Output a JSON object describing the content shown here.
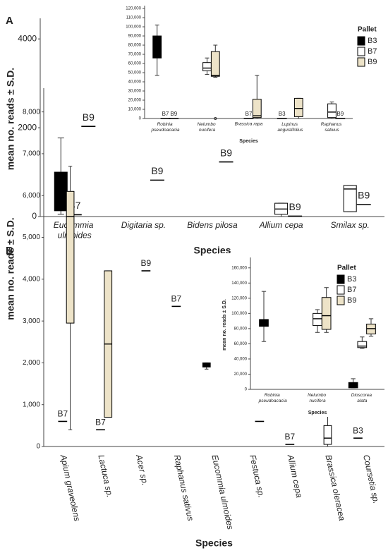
{
  "chart_data": [
    {
      "type": "box",
      "panel_label": "A",
      "xlabel": "Species",
      "ylabel": "mean no. reads ± S.D.",
      "categories": [
        "Eucommia ulmoides",
        "Digitaria sp.",
        "Bidens pilosa",
        "Allium cepa",
        "Smilax sp."
      ],
      "ylim": [
        0,
        4400
      ],
      "yticks": [
        0,
        2000,
        4000
      ],
      "series": [
        {
          "name": "B3",
          "color": "#000000",
          "values": [
            {
              "min": 50,
              "q1": 130,
              "median": 600,
              "q3": 1000,
              "max": 1770
            },
            null,
            null,
            null,
            null
          ]
        },
        {
          "name": "B7",
          "color": "#ffffff",
          "values": [
            40,
            null,
            null,
            {
              "min": 0,
              "q1": 50,
              "median": 170,
              "q3": 300,
              "max": 300
            },
            {
              "min": 110,
              "q1": 110,
              "median": 620,
              "q3": 700,
              "max": 700
            }
          ]
        },
        {
          "name": "B9",
          "color": "#ede3c8",
          "values": [
            2030,
            820,
            1230,
            10,
            270
          ]
        }
      ]
    },
    {
      "type": "box",
      "xlabel": "Species",
      "legend_title": "Pallet",
      "categories": [
        "Robinia pseudoacacia",
        "Nelumbo nucifera",
        "Brassica rapa",
        "Lupinus angustifolius",
        "Raphanus sativus"
      ],
      "ylim": [
        0,
        120000
      ],
      "yticks": [
        0,
        {
          "value": 10000,
          "label": "10,000"
        },
        {
          "value": 20000,
          "label": "20,000"
        },
        {
          "value": 30000,
          "label": "30,000"
        },
        {
          "value": 40000,
          "label": "40,000"
        },
        {
          "value": 50000,
          "label": "50,000"
        },
        {
          "value": 60000,
          "label": "60,000"
        },
        {
          "value": 70000,
          "label": "70,000"
        },
        {
          "value": 80000,
          "label": "80,000"
        },
        {
          "value": 90000,
          "label": "90,000"
        },
        {
          "value": 100000,
          "label": "100,000"
        },
        {
          "value": 110000,
          "label": "110,000"
        },
        {
          "value": 120000,
          "label": "120,000"
        }
      ],
      "series": [
        {
          "name": "B3",
          "color": "#000000",
          "values": [
            {
              "min": 47000,
              "q1": 66000,
              "median": 77000,
              "q3": 90000,
              "max": 102000
            },
            null,
            null,
            0,
            null
          ]
        },
        {
          "name": "B7",
          "color": "#ffffff",
          "values": [
            0,
            {
              "min": 48000,
              "q1": 52000,
              "median": 55000,
              "q3": 61000,
              "max": 66000
            },
            0,
            null,
            {
              "min": 0,
              "q1": 1000,
              "median": 7000,
              "q3": 16000,
              "max": 18000
            }
          ]
        },
        {
          "name": "B9",
          "color": "#ede3c8",
          "values": [
            0,
            {
              "min": 45000,
              "q1": 46000,
              "median": 47000,
              "q3": 73000,
              "max": 80000,
              "outliers": [
                0
              ]
            },
            {
              "min": 0,
              "q1": 1000,
              "median": 3000,
              "q3": 21000,
              "max": 47000
            },
            {
              "min": 0,
              "q1": 2000,
              "median": 11000,
              "q3": 22000,
              "max": 22000
            },
            0
          ]
        }
      ]
    },
    {
      "type": "box",
      "panel_label": "B",
      "xlabel": "Species",
      "ylabel": "mean no. reads ± S.D.",
      "categories": [
        "Apium graveolens",
        "Lactuca sp.",
        "Acer sp.",
        "Raphanus sativus",
        "Eucommia ulmoides",
        "Festuca sp.",
        "Allium cepa",
        "Brassica oleracea",
        "Coursetia sp."
      ],
      "ylim": [
        0,
        8500
      ],
      "yticks": [
        0,
        {
          "value": 1000,
          "label": "1,000"
        },
        {
          "value": 2000,
          "label": "2,000"
        },
        {
          "value": 3000,
          "label": "3,000"
        },
        {
          "value": 4000,
          "label": "4,000"
        },
        {
          "value": 5000,
          "label": "5,000"
        },
        {
          "value": 6000,
          "label": "6,000"
        },
        {
          "value": 7000,
          "label": "7,000"
        },
        {
          "value": 8000,
          "label": "8,000"
        }
      ],
      "series": [
        {
          "name": "B3",
          "color": "#000000",
          "values": [
            null,
            null,
            null,
            null,
            {
              "min": 1850,
              "q1": 1900,
              "median": 1950,
              "q3": 2000,
              "max": 2000
            },
            null,
            null,
            null,
            200
          ]
        },
        {
          "name": "B7",
          "color": "#ffffff",
          "values": [
            600,
            400,
            null,
            3350,
            null,
            null,
            50,
            {
              "min": 0,
              "q1": 50,
              "median": 200,
              "q3": 500,
              "max": 1050
            },
            null
          ]
        },
        {
          "name": "B9",
          "color": "#ede3c8",
          "values": [
            {
              "min": 400,
              "q1": 2950,
              "median": 5500,
              "q3": 6100,
              "max": 6700
            },
            {
              "min": 700,
              "q1": 700,
              "median": 2450,
              "q3": 4200,
              "max": 4200
            },
            4200,
            null,
            null,
            600,
            null,
            null,
            null
          ]
        }
      ]
    },
    {
      "type": "box",
      "xlabel": "Species",
      "ylabel": "mean no. reads ± S.D.",
      "legend_title": "Pallet",
      "categories": [
        "Robinia pseudoacacia",
        "Nelumbo nucifera",
        "Dioscorea alata"
      ],
      "ylim": [
        0,
        170000
      ],
      "yticks": [
        0,
        {
          "value": 20000,
          "label": "20,000"
        },
        {
          "value": 40000,
          "label": "40,000"
        },
        {
          "value": 60000,
          "label": "60,000"
        },
        {
          "value": 80000,
          "label": "80,000"
        },
        {
          "value": 100000,
          "label": "100,000"
        },
        {
          "value": 120000,
          "label": "120,000"
        },
        {
          "value": 140000,
          "label": "140,000"
        },
        {
          "value": 160000,
          "label": "160,000"
        }
      ],
      "series": [
        {
          "name": "B3",
          "color": "#000000",
          "values": [
            {
              "min": 63000,
              "q1": 83000,
              "median": 88000,
              "q3": 92000,
              "max": 129000
            },
            null,
            {
              "min": 2000,
              "q1": 2000,
              "median": 5000,
              "q3": 9000,
              "max": 14000
            }
          ]
        },
        {
          "name": "B7",
          "color": "#ffffff",
          "values": [
            null,
            {
              "min": 75000,
              "q1": 84000,
              "median": 93000,
              "q3": 100000,
              "max": 105000
            },
            {
              "min": 54000,
              "q1": 55000,
              "median": 57000,
              "q3": 63000,
              "max": 69000
            }
          ]
        },
        {
          "name": "B9",
          "color": "#ede3c8",
          "values": [
            null,
            {
              "min": 75000,
              "q1": 79000,
              "median": 97000,
              "q3": 121000,
              "max": 134000
            },
            {
              "min": 70000,
              "q1": 73000,
              "median": 80000,
              "q3": 86000,
              "max": 93000
            }
          ]
        }
      ]
    }
  ]
}
